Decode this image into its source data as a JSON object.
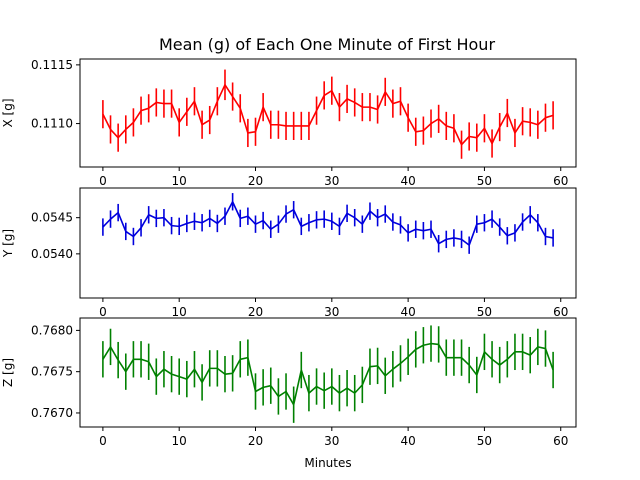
{
  "title": "Mean (g) of Each One Minute of First Hour",
  "xlabel": "Minutes",
  "chart_data": [
    {
      "type": "line",
      "panel": "x",
      "ylabel": "X [g]",
      "color": "#ff0000",
      "xlim": [
        -3,
        62
      ],
      "ylim": [
        0.11063,
        0.11155
      ],
      "xticks": [
        0,
        10,
        20,
        30,
        40,
        50,
        60
      ],
      "yticks": [
        0.111,
        0.1115
      ],
      "ytick_labels": [
        "0.1110",
        "0.1115"
      ],
      "x": [
        0,
        1,
        2,
        3,
        4,
        5,
        6,
        7,
        8,
        9,
        10,
        11,
        12,
        13,
        14,
        15,
        16,
        17,
        18,
        19,
        20,
        21,
        22,
        23,
        24,
        25,
        26,
        27,
        28,
        29,
        30,
        31,
        32,
        33,
        34,
        35,
        36,
        37,
        38,
        39,
        40,
        41,
        42,
        43,
        44,
        45,
        46,
        47,
        48,
        49,
        50,
        51,
        52,
        53,
        54,
        55,
        56,
        57,
        58,
        59
      ],
      "values": [
        0.11108,
        0.11095,
        0.11088,
        0.11095,
        0.11101,
        0.11111,
        0.11113,
        0.11118,
        0.11117,
        0.11117,
        0.11101,
        0.1111,
        0.11119,
        0.11099,
        0.11103,
        0.11119,
        0.11133,
        0.11123,
        0.11113,
        0.11092,
        0.11093,
        0.11114,
        0.11099,
        0.11099,
        0.11098,
        0.11098,
        0.11098,
        0.11098,
        0.11111,
        0.11124,
        0.11128,
        0.11114,
        0.11121,
        0.11118,
        0.11114,
        0.11114,
        0.11112,
        0.11127,
        0.11117,
        0.11119,
        0.11105,
        0.11093,
        0.11094,
        0.111,
        0.11104,
        0.11098,
        0.11096,
        0.11082,
        0.11089,
        0.11088,
        0.11096,
        0.11083,
        0.11097,
        0.11109,
        0.11092,
        0.11102,
        0.11101,
        0.11099,
        0.11105,
        0.11107
      ],
      "errors": [
        0.00012,
        0.00012,
        0.00012,
        0.00012,
        0.00012,
        0.00012,
        0.00012,
        0.00012,
        0.00012,
        0.00012,
        0.00012,
        0.00012,
        0.00012,
        0.00012,
        0.00012,
        0.00012,
        0.00013,
        0.00012,
        0.00012,
        0.00012,
        0.00012,
        0.00012,
        0.00012,
        0.00012,
        0.00012,
        0.00012,
        0.00012,
        0.00012,
        0.00012,
        0.00012,
        0.00012,
        0.00012,
        0.00012,
        0.00012,
        0.00012,
        0.00012,
        0.00012,
        0.00012,
        0.00012,
        0.00012,
        0.00012,
        0.00012,
        0.00012,
        0.00012,
        0.00012,
        0.00012,
        0.00012,
        0.00012,
        0.00012,
        0.00012,
        0.00012,
        0.00012,
        0.00012,
        0.00012,
        0.00012,
        0.00012,
        0.00012,
        0.00012,
        0.00012,
        0.00012
      ]
    },
    {
      "type": "line",
      "panel": "y",
      "ylabel": "Y [g]",
      "color": "#0000dd",
      "xlim": [
        -3,
        62
      ],
      "ylim": [
        0.05339,
        0.05491
      ],
      "xticks": [
        0,
        10,
        20,
        30,
        40,
        50,
        60
      ],
      "yticks": [
        0.054,
        0.0545
      ],
      "ytick_labels": [
        "0.0540",
        "0.0545"
      ],
      "x": [
        0,
        1,
        2,
        3,
        4,
        5,
        6,
        7,
        8,
        9,
        10,
        11,
        12,
        13,
        14,
        15,
        16,
        17,
        18,
        19,
        20,
        21,
        22,
        23,
        24,
        25,
        26,
        27,
        28,
        29,
        30,
        31,
        32,
        33,
        34,
        35,
        36,
        37,
        38,
        39,
        40,
        41,
        42,
        43,
        44,
        45,
        46,
        47,
        48,
        49,
        50,
        51,
        52,
        53,
        54,
        55,
        56,
        57,
        58,
        59
      ],
      "values": [
        0.05437,
        0.05448,
        0.05457,
        0.05431,
        0.05424,
        0.05436,
        0.05454,
        0.05449,
        0.0545,
        0.05439,
        0.05438,
        0.05442,
        0.05445,
        0.05443,
        0.05449,
        0.05442,
        0.05452,
        0.05472,
        0.05449,
        0.05452,
        0.05441,
        0.05446,
        0.05434,
        0.05441,
        0.05455,
        0.05461,
        0.05438,
        0.05443,
        0.05447,
        0.05448,
        0.05445,
        0.05438,
        0.05456,
        0.0545,
        0.05441,
        0.05459,
        0.0545,
        0.05455,
        0.05444,
        0.0544,
        0.05429,
        0.05434,
        0.05432,
        0.05434,
        0.05414,
        0.0542,
        0.05422,
        0.0542,
        0.05412,
        0.05441,
        0.05443,
        0.05448,
        0.05437,
        0.05425,
        0.05429,
        0.05444,
        0.05454,
        0.05443,
        0.05424,
        0.05422
      ],
      "errors": [
        0.00012,
        0.00012,
        0.00012,
        0.00012,
        0.00012,
        0.00012,
        0.00012,
        0.00012,
        0.00012,
        0.00012,
        0.00012,
        0.00012,
        0.00012,
        0.00012,
        0.00012,
        0.00012,
        0.00012,
        0.00012,
        0.00012,
        0.00012,
        0.00012,
        0.00012,
        0.00012,
        0.00012,
        0.00012,
        0.00012,
        0.00012,
        0.00012,
        0.00012,
        0.00012,
        0.00012,
        0.00012,
        0.00012,
        0.00012,
        0.00012,
        0.00012,
        0.00012,
        0.00012,
        0.00012,
        0.00012,
        0.00012,
        0.00012,
        0.00012,
        0.00012,
        0.00012,
        0.00012,
        0.00012,
        0.00012,
        0.00012,
        0.00012,
        0.00012,
        0.00012,
        0.00012,
        0.00012,
        0.00012,
        0.00012,
        0.00012,
        0.00012,
        0.00012,
        0.00012
      ]
    },
    {
      "type": "line",
      "panel": "z",
      "ylabel": "Z [g]",
      "color": "#008000",
      "xlim": [
        -3,
        62
      ],
      "ylim": [
        0.76683,
        0.76815
      ],
      "xticks": [
        0,
        10,
        20,
        30,
        40,
        50,
        60
      ],
      "yticks": [
        0.767,
        0.7675,
        0.768
      ],
      "ytick_labels": [
        "0.7670",
        "0.7675",
        "0.7680"
      ],
      "x": [
        0,
        1,
        2,
        3,
        4,
        5,
        6,
        7,
        8,
        9,
        10,
        11,
        12,
        13,
        14,
        15,
        16,
        17,
        18,
        19,
        20,
        21,
        22,
        23,
        24,
        25,
        26,
        27,
        28,
        29,
        30,
        31,
        32,
        33,
        34,
        35,
        36,
        37,
        38,
        39,
        40,
        41,
        42,
        43,
        44,
        45,
        46,
        47,
        48,
        49,
        50,
        51,
        52,
        53,
        54,
        55,
        56,
        57,
        58,
        59
      ],
      "values": [
        0.76765,
        0.7678,
        0.76764,
        0.7675,
        0.76765,
        0.76765,
        0.76762,
        0.76744,
        0.76753,
        0.76747,
        0.76744,
        0.76741,
        0.76753,
        0.76737,
        0.76754,
        0.76754,
        0.76747,
        0.76748,
        0.76765,
        0.76767,
        0.76726,
        0.76731,
        0.76733,
        0.7672,
        0.76726,
        0.7671,
        0.76752,
        0.76724,
        0.76732,
        0.76727,
        0.76732,
        0.76724,
        0.7673,
        0.76724,
        0.76734,
        0.76756,
        0.76757,
        0.76745,
        0.76753,
        0.7676,
        0.76768,
        0.76777,
        0.76782,
        0.76784,
        0.76783,
        0.76767,
        0.76767,
        0.76767,
        0.76758,
        0.76746,
        0.76774,
        0.76765,
        0.76758,
        0.76765,
        0.76774,
        0.76774,
        0.7677,
        0.7678,
        0.76778,
        0.76752
      ],
      "errors": [
        0.00022,
        0.00022,
        0.00022,
        0.00022,
        0.00022,
        0.00022,
        0.00022,
        0.00022,
        0.00022,
        0.00022,
        0.00022,
        0.00022,
        0.00022,
        0.00022,
        0.00022,
        0.00022,
        0.00022,
        0.00022,
        0.00022,
        0.00022,
        0.00022,
        0.00022,
        0.00022,
        0.00022,
        0.00022,
        0.00022,
        0.00022,
        0.00022,
        0.00022,
        0.00022,
        0.00022,
        0.00022,
        0.00022,
        0.00022,
        0.00022,
        0.00022,
        0.00022,
        0.00022,
        0.00022,
        0.00022,
        0.00022,
        0.00022,
        0.00022,
        0.00022,
        0.00022,
        0.00022,
        0.00022,
        0.00022,
        0.00022,
        0.00022,
        0.00022,
        0.00022,
        0.00022,
        0.00022,
        0.00022,
        0.00022,
        0.00022,
        0.00022,
        0.00022,
        0.00022
      ]
    }
  ]
}
